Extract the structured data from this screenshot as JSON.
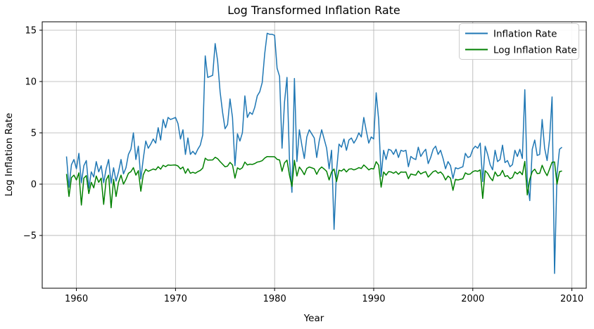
{
  "figure": {
    "title": "Log Transformed Inflation Rate",
    "xlabel": "Year",
    "ylabel": "Log Inflation Rate",
    "background_color": "#ffffff",
    "grid_color": "#b0b0b0",
    "spine_color": "#000000",
    "grid_on": true
  },
  "legend": {
    "position": "upper right",
    "border_color": "#cccccc",
    "background_color": "#ffffff",
    "items": [
      {
        "label": "Inflation Rate",
        "color": "#1f77b4"
      },
      {
        "label": "Log Inflation Rate",
        "color": "#008000"
      }
    ]
  },
  "chart_data": {
    "type": "line",
    "title": "Log Transformed Inflation Rate",
    "xlabel": "Year",
    "ylabel": "Log Inflation Rate",
    "xlim": [
      1956.55,
      2011.45
    ],
    "ylim": [
      -10.14,
      15.82
    ],
    "xticks": [
      1960,
      1970,
      1980,
      1990,
      2000,
      2010
    ],
    "yticks": [
      -5,
      0,
      5,
      10,
      15
    ],
    "grid": true,
    "legend_position": "upper right",
    "x_start": 1959.0,
    "x_step": 0.25,
    "series": [
      {
        "name": "Inflation Rate",
        "color": "#1f77b4",
        "line_width": 1.5,
        "values": [
          2.7,
          -0.3,
          1.9,
          2.4,
          1.5,
          3.0,
          0.13,
          1.8,
          2.3,
          -0.4,
          1.2,
          0.7,
          2.2,
          1.2,
          1.8,
          0.14,
          1.5,
          2.4,
          0.1,
          1.6,
          0.3,
          1.2,
          2.4,
          1.0,
          1.6,
          2.9,
          3.4,
          5.0,
          2.4,
          3.7,
          0.5,
          2.5,
          4.2,
          3.5,
          3.9,
          4.4,
          4.0,
          5.5,
          4.3,
          6.3,
          5.5,
          6.5,
          6.3,
          6.4,
          6.5,
          5.9,
          4.4,
          5.3,
          2.9,
          4.5,
          2.9,
          3.2,
          2.9,
          3.4,
          3.8,
          4.8,
          12.5,
          10.4,
          10.5,
          10.6,
          13.7,
          12.0,
          9.0,
          7.0,
          5.4,
          5.8,
          8.3,
          6.5,
          1.8,
          4.9,
          4.2,
          5.0,
          8.6,
          6.5,
          7.0,
          6.8,
          7.5,
          8.6,
          9.0,
          9.9,
          12.7,
          14.7,
          14.6,
          14.6,
          14.5,
          11.3,
          10.5,
          3.5,
          8.0,
          10.4,
          2.4,
          -0.8,
          10.3,
          2.2,
          5.3,
          3.8,
          2.5,
          4.6,
          5.3,
          4.9,
          4.5,
          2.6,
          4.2,
          5.3,
          4.4,
          3.5,
          1.5,
          3.3,
          -4.4,
          1.3,
          3.9,
          3.6,
          4.4,
          3.3,
          4.3,
          4.5,
          4.0,
          4.4,
          5.0,
          4.6,
          6.5,
          5.2,
          4.0,
          4.6,
          4.4,
          8.9,
          6.3,
          0.75,
          3.3,
          2.4,
          3.4,
          3.3,
          2.9,
          3.4,
          2.6,
          3.3,
          3.2,
          3.3,
          1.7,
          2.7,
          2.5,
          2.4,
          3.6,
          2.7,
          3.1,
          3.4,
          2.0,
          2.6,
          3.4,
          3.7,
          2.9,
          3.3,
          2.5,
          1.5,
          2.2,
          1.8,
          0.55,
          1.6,
          1.5,
          1.6,
          1.7,
          3.0,
          2.6,
          2.7,
          3.4,
          3.7,
          3.5,
          4.0,
          0.25,
          3.7,
          2.9,
          1.9,
          1.4,
          3.3,
          2.2,
          2.4,
          3.8,
          2.1,
          2.3,
          1.7,
          1.9,
          3.3,
          2.7,
          3.4,
          2.5,
          9.2,
          0.35,
          -1.6,
          3.4,
          4.3,
          2.8,
          2.9,
          6.3,
          3.5,
          2.3,
          4.4,
          8.5,
          -8.7,
          1.0,
          3.4,
          3.6
        ]
      },
      {
        "name": "Log Inflation Rate",
        "color": "#008000",
        "line_width": 1.5,
        "values": [
          0.99,
          -1.2,
          0.64,
          0.88,
          0.41,
          1.1,
          -2.04,
          0.59,
          0.83,
          -0.92,
          0.18,
          -0.36,
          0.79,
          0.18,
          0.59,
          -1.97,
          0.41,
          0.88,
          -2.3,
          0.47,
          -1.2,
          0.18,
          0.88,
          0.0,
          0.47,
          1.06,
          1.22,
          1.61,
          0.88,
          1.31,
          -0.69,
          0.92,
          1.44,
          1.25,
          1.36,
          1.48,
          1.39,
          1.7,
          1.46,
          1.84,
          1.7,
          1.87,
          1.84,
          1.86,
          1.87,
          1.77,
          1.48,
          1.67,
          1.06,
          1.5,
          1.06,
          1.16,
          1.06,
          1.22,
          1.34,
          1.57,
          2.53,
          2.34,
          2.35,
          2.36,
          2.62,
          2.48,
          2.2,
          1.95,
          1.69,
          1.76,
          2.12,
          1.87,
          0.59,
          1.59,
          1.44,
          1.61,
          2.15,
          1.87,
          1.95,
          1.92,
          2.01,
          2.15,
          2.2,
          2.29,
          2.54,
          2.69,
          2.68,
          2.68,
          2.67,
          2.42,
          2.35,
          1.25,
          2.08,
          2.34,
          0.88,
          -0.22,
          2.33,
          0.79,
          1.67,
          1.34,
          0.92,
          1.53,
          1.67,
          1.59,
          1.5,
          0.96,
          1.44,
          1.67,
          1.48,
          1.25,
          0.41,
          1.19,
          1.48,
          0.26,
          1.36,
          1.28,
          1.48,
          1.19,
          1.46,
          1.5,
          1.39,
          1.48,
          1.61,
          1.53,
          1.87,
          1.65,
          1.39,
          1.53,
          1.48,
          2.19,
          1.84,
          -0.29,
          1.19,
          0.88,
          1.22,
          1.19,
          1.06,
          1.22,
          0.96,
          1.19,
          1.16,
          1.19,
          0.53,
          0.99,
          0.92,
          0.88,
          1.28,
          0.99,
          1.13,
          1.22,
          0.69,
          0.96,
          1.22,
          1.31,
          1.06,
          1.19,
          0.92,
          0.41,
          0.79,
          0.59,
          -0.6,
          0.47,
          0.41,
          0.47,
          0.53,
          1.1,
          0.96,
          0.99,
          1.22,
          1.31,
          1.25,
          1.39,
          -1.39,
          1.31,
          1.06,
          0.64,
          0.34,
          1.19,
          0.79,
          0.88,
          1.34,
          0.74,
          0.83,
          0.53,
          0.64,
          1.19,
          0.99,
          1.22,
          0.92,
          2.22,
          -1.05,
          0.47,
          1.22,
          1.46,
          1.03,
          1.06,
          1.84,
          1.25,
          0.83,
          1.48,
          2.14,
          2.16,
          0.0,
          1.22,
          1.28
        ]
      }
    ]
  }
}
